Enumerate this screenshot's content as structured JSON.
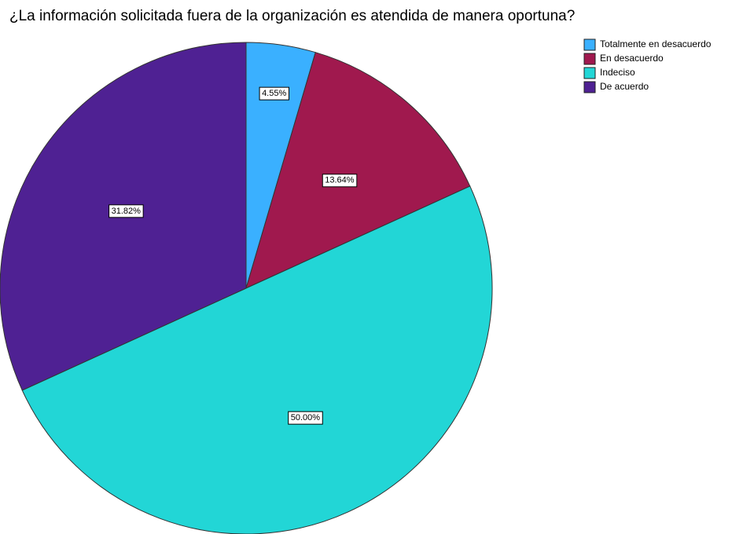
{
  "chart_data": {
    "type": "pie",
    "title": "¿La información solicitada fuera de la organización es atendida de manera oportuna?",
    "categories": [
      "Totalmente en desacuerdo",
      "En desacuerdo",
      "Indeciso",
      "De acuerdo"
    ],
    "values": [
      4.55,
      13.64,
      50.0,
      31.82
    ],
    "value_labels": [
      "4.55%",
      "13.64%",
      "50.00%",
      "31.82%"
    ],
    "colors": [
      "#3ab0ff",
      "#a0194e",
      "#22d6d6",
      "#4f2193"
    ],
    "legend": "top-right"
  }
}
